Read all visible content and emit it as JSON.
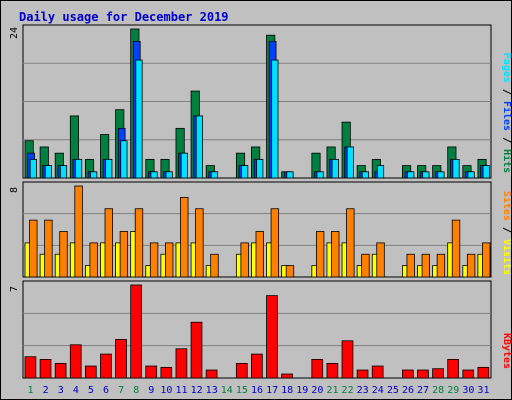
{
  "title": "Daily usage for December 2019",
  "colors": {
    "hits": "#008040",
    "files": "#0040ff",
    "pages": "#00e0ff",
    "visits": "#ffff00",
    "sites": "#ff8000",
    "kbytes": "#ff0000",
    "weekend_label": "#008040",
    "weekday_label": "#0000cc",
    "panel_bg": "#c0c0c0"
  },
  "legends": {
    "top": {
      "pages": "Pages",
      "sep1": " / ",
      "files": "Files",
      "sep2": " / ",
      "hits": "Hits"
    },
    "middle": {
      "sites": "Sites",
      "sep": " / ",
      "visits": "Visits"
    },
    "bottom": {
      "kbytes": "KBytes"
    }
  },
  "chart_data": [
    {
      "type": "bar",
      "panel": "top",
      "ylim": [
        0,
        24
      ],
      "ymax_label": "24",
      "categories": [
        "1",
        "2",
        "3",
        "4",
        "5",
        "6",
        "7",
        "8",
        "9",
        "10",
        "11",
        "12",
        "13",
        "14",
        "15",
        "16",
        "17",
        "18",
        "19",
        "20",
        "21",
        "22",
        "23",
        "24",
        "25",
        "26",
        "27",
        "28",
        "29",
        "30",
        "31"
      ],
      "weekend_days": [
        "1",
        "7",
        "8",
        "14",
        "15",
        "21",
        "22",
        "28",
        "29"
      ],
      "series": [
        {
          "name": "Hits",
          "values": [
            6,
            5,
            4,
            10,
            3,
            7,
            11,
            24,
            3,
            3,
            8,
            14,
            2,
            0,
            4,
            5,
            23,
            1,
            0,
            4,
            5,
            9,
            2,
            3,
            0,
            2,
            2,
            2,
            5,
            2,
            3
          ]
        },
        {
          "name": "Files",
          "values": [
            4,
            2,
            2,
            3,
            1,
            3,
            8,
            22,
            1,
            1,
            4,
            10,
            1,
            0,
            2,
            3,
            22,
            1,
            0,
            1,
            3,
            5,
            1,
            1,
            0,
            1,
            1,
            1,
            3,
            1,
            2
          ]
        },
        {
          "name": "Pages",
          "values": [
            3,
            2,
            2,
            3,
            1,
            3,
            6,
            19,
            1,
            1,
            4,
            10,
            1,
            0,
            2,
            3,
            19,
            1,
            0,
            1,
            3,
            5,
            1,
            2,
            0,
            1,
            1,
            1,
            3,
            1,
            2
          ]
        }
      ]
    },
    {
      "type": "bar",
      "panel": "middle",
      "ylim": [
        0,
        8
      ],
      "ymax_label": "8",
      "categories": [
        "1",
        "2",
        "3",
        "4",
        "5",
        "6",
        "7",
        "8",
        "9",
        "10",
        "11",
        "12",
        "13",
        "14",
        "15",
        "16",
        "17",
        "18",
        "19",
        "20",
        "21",
        "22",
        "23",
        "24",
        "25",
        "26",
        "27",
        "28",
        "29",
        "30",
        "31"
      ],
      "series": [
        {
          "name": "Visits",
          "values": [
            3,
            2,
            2,
            3,
            1,
            3,
            3,
            4,
            1,
            2,
            3,
            3,
            1,
            0,
            2,
            3,
            3,
            1,
            0,
            1,
            3,
            3,
            1,
            2,
            0,
            1,
            1,
            1,
            3,
            1,
            2
          ]
        },
        {
          "name": "Sites",
          "values": [
            5,
            5,
            4,
            8,
            3,
            6,
            4,
            6,
            3,
            3,
            7,
            6,
            2,
            0,
            3,
            4,
            6,
            1,
            0,
            4,
            4,
            6,
            2,
            3,
            0,
            2,
            2,
            2,
            5,
            2,
            3
          ]
        }
      ]
    },
    {
      "type": "bar",
      "panel": "bottom",
      "ylim": [
        0,
        7
      ],
      "ymax_label": "7",
      "categories": [
        "1",
        "2",
        "3",
        "4",
        "5",
        "6",
        "7",
        "8",
        "9",
        "10",
        "11",
        "12",
        "13",
        "14",
        "15",
        "16",
        "17",
        "18",
        "19",
        "20",
        "21",
        "22",
        "23",
        "24",
        "25",
        "26",
        "27",
        "28",
        "29",
        "30",
        "31"
      ],
      "series": [
        {
          "name": "KBytes",
          "values": [
            1.6,
            1.4,
            1.1,
            2.5,
            0.9,
            1.8,
            2.9,
            7,
            0.9,
            0.8,
            2.2,
            4.2,
            0.6,
            0,
            1.1,
            1.8,
            6.2,
            0.3,
            0,
            1.4,
            1.1,
            2.8,
            0.6,
            0.9,
            0,
            0.6,
            0.6,
            0.7,
            1.4,
            0.6,
            0.8
          ]
        }
      ]
    }
  ]
}
